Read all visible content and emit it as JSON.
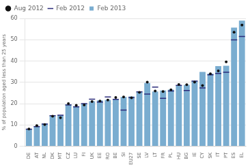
{
  "chart_data": {
    "type": "bar",
    "categories": [
      "DE",
      "AT",
      "NL",
      "DK",
      "MT",
      "CZ",
      "LU",
      "FI",
      "UK",
      "EE",
      "RO",
      "BE",
      "SI",
      "EU27",
      "SE",
      "LV",
      "LT",
      "FR",
      "PL",
      "HU",
      "BG",
      "IE",
      "CY",
      "SK",
      "IT",
      "PT",
      "ES",
      "EL"
    ],
    "series": [
      {
        "name": "Feb 2013",
        "type": "bar",
        "color": "#7aadd0",
        "values": [
          8.1,
          9.4,
          10.7,
          14.3,
          14.6,
          19.7,
          18.8,
          19.9,
          21.1,
          21.5,
          21.8,
          22.2,
          23.1,
          23.4,
          25.5,
          29.7,
          25.7,
          26.2,
          26.6,
          28.4,
          28.8,
          30.7,
          34.9,
          34.1,
          37.6,
          37.8,
          55.7,
          59.0
        ]
      },
      {
        "name": "Aug 2012",
        "type": "scatter",
        "marker": "circle",
        "color": "#111111",
        "values": [
          8.1,
          9.7,
          10.2,
          14.1,
          13.4,
          20.0,
          19.2,
          19.4,
          21.0,
          21.2,
          21.7,
          22.9,
          23.1,
          22.7,
          25.3,
          30.1,
          25.9,
          25.7,
          26.5,
          29.0,
          28.9,
          30.1,
          28.5,
          34.0,
          35.4,
          39.6,
          53.5,
          56.9
        ]
      },
      {
        "name": "Feb 2012",
        "type": "scatter",
        "marker": "dash",
        "color": "#2b2b7a",
        "values": [
          8.0,
          9.2,
          10.4,
          14.3,
          14.6,
          19.4,
          18.5,
          20.0,
          22.1,
          20.7,
          23.1,
          22.0,
          17.0,
          22.8,
          25.5,
          24.5,
          27.8,
          22.5,
          25.9,
          28.6,
          26.2,
          30.6,
          27.4,
          33.5,
          34.2,
          34.7,
          49.9,
          51.5
        ]
      }
    ],
    "ylabel": "% of population aged less than 25 years",
    "ylim": [
      0,
      60
    ],
    "yticks": [
      0,
      10,
      20,
      30,
      40,
      50,
      60
    ],
    "grid": true,
    "legend": "upper left"
  }
}
